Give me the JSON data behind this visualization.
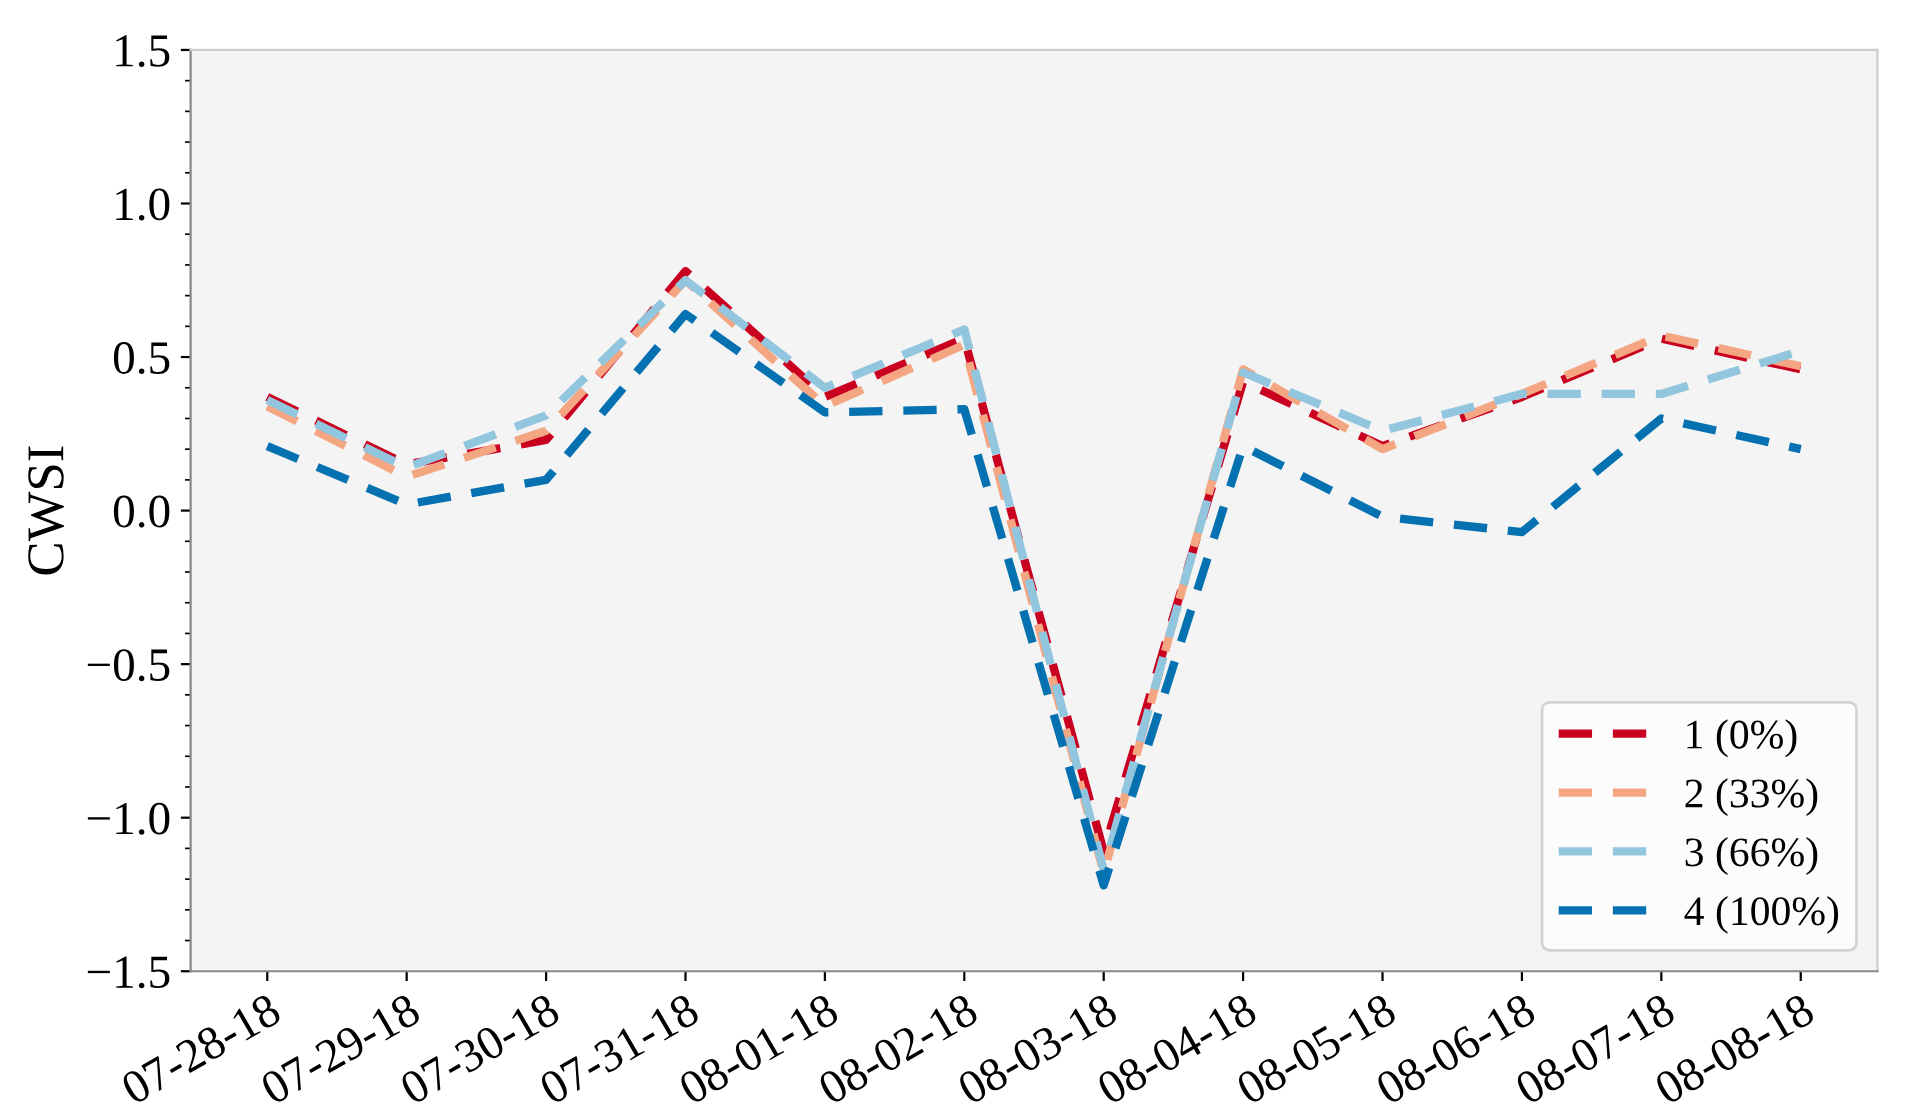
{
  "chart_data": {
    "type": "line",
    "ylabel": "CWSI",
    "categories": [
      "07-28-18",
      "07-29-18",
      "07-30-18",
      "07-31-18",
      "08-01-18",
      "08-02-18",
      "08-03-18",
      "08-04-18",
      "08-05-18",
      "08-06-18",
      "08-07-18",
      "08-08-18"
    ],
    "series": [
      {
        "name": "1 (0%)",
        "color": "#ca0020",
        "values": [
          0.37,
          0.15,
          0.23,
          0.78,
          0.37,
          0.56,
          -1.11,
          0.42,
          0.21,
          0.37,
          0.56,
          0.46
        ]
      },
      {
        "name": "2 (33%)",
        "color": "#f4a582",
        "values": [
          0.34,
          0.11,
          0.26,
          0.75,
          0.34,
          0.54,
          -1.18,
          0.46,
          0.2,
          0.38,
          0.57,
          0.47
        ]
      },
      {
        "name": "3 (66%)",
        "color": "#92c5de",
        "values": [
          0.36,
          0.14,
          0.31,
          0.75,
          0.4,
          0.59,
          -1.17,
          0.45,
          0.26,
          0.38,
          0.38,
          0.52
        ]
      },
      {
        "name": "4 (100%)",
        "color": "#0571b0",
        "values": [
          0.21,
          0.02,
          0.1,
          0.64,
          0.32,
          0.33,
          -1.22,
          0.21,
          -0.02,
          -0.07,
          0.3,
          0.2
        ]
      }
    ],
    "ylim": [
      -1.5,
      1.5
    ],
    "yticks": [
      {
        "value": -1.5,
        "label": "−1.5"
      },
      {
        "value": -1,
        "label": "−1.0"
      },
      {
        "value": -0.5,
        "label": "−0.5"
      },
      {
        "value": 0,
        "label": "0.0"
      },
      {
        "value": 0.5,
        "label": "0.5"
      },
      {
        "value": 1,
        "label": "1.0"
      },
      {
        "value": 1.5,
        "label": "1.5"
      }
    ],
    "grid": false,
    "legend": "bottom right",
    "line_style": "dashed",
    "marker": "none"
  }
}
